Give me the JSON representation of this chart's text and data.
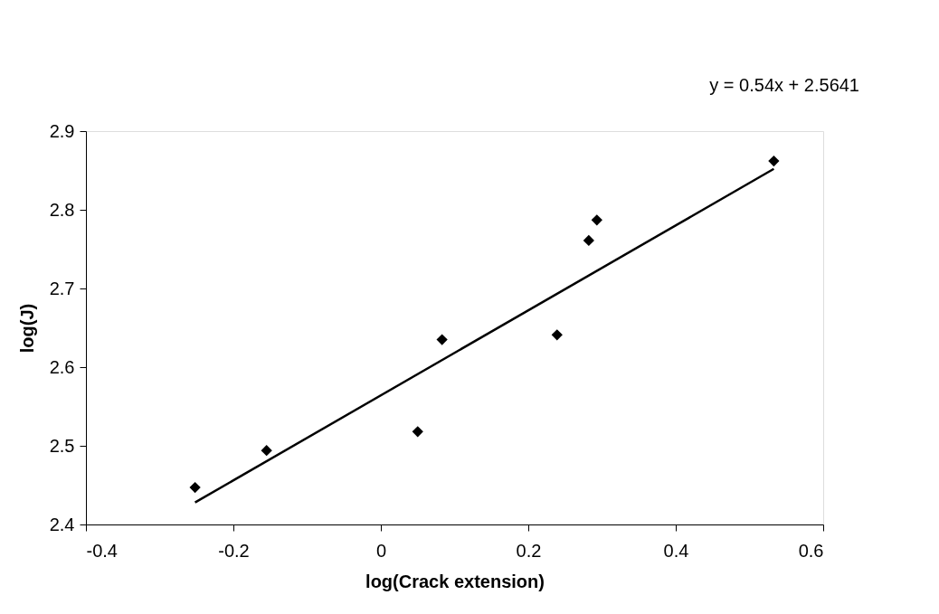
{
  "chart_data": {
    "type": "scatter",
    "xlabel": "log(Crack extension)",
    "ylabel": "log(J)",
    "annotations": [
      "y = 0.54x + 2.5641"
    ],
    "xlim": [
      -0.4,
      0.6
    ],
    "xticks": [
      -0.4,
      -0.2,
      0,
      0.2,
      0.4,
      0.6
    ],
    "ylim": [
      2.4,
      2.9
    ],
    "yticks": [
      2.4,
      2.5,
      2.6,
      2.7,
      2.8,
      2.9
    ],
    "grid": false,
    "marker": "diamond",
    "series": [
      {
        "color": "#000000",
        "x": [
          -0.252,
          -0.155,
          0.05,
          0.083,
          0.239,
          0.282,
          0.293,
          0.533
        ],
        "values": [
          2.447,
          2.494,
          2.518,
          2.635,
          2.641,
          2.761,
          2.787,
          2.862
        ]
      },
      {
        "type": "line",
        "color": "#000000",
        "line_style": "solid",
        "marker": "none",
        "x": [
          -0.252,
          0.533
        ],
        "values": [
          2.428,
          2.852
        ]
      }
    ]
  }
}
